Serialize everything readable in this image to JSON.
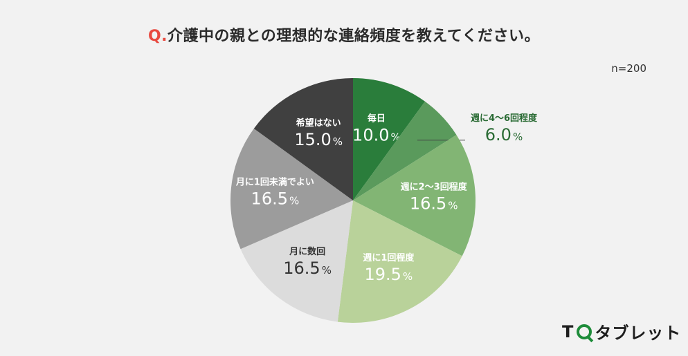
{
  "title": {
    "q": "Q.",
    "text": "介護中の親との理想的な連絡頻度を教えてください。"
  },
  "sample_size": "n=200",
  "logo": {
    "t": "T",
    "rest": "タブレット"
  },
  "chart_data": {
    "type": "pie",
    "title": "Q.介護中の親との理想的な連絡頻度を教えてください。",
    "slices": [
      {
        "label": "毎日",
        "value": 10.0,
        "display": "10.0",
        "color": "#2a7d3b"
      },
      {
        "label": "週に4〜6回程度",
        "value": 6.0,
        "display": "6.0",
        "color": "#5a9a5c"
      },
      {
        "label": "週に2〜3回程度",
        "value": 16.5,
        "display": "16.5",
        "color": "#82b574"
      },
      {
        "label": "週に1回程度",
        "value": 19.5,
        "display": "19.5",
        "color": "#b9d29a"
      },
      {
        "label": "月に数回",
        "value": 16.5,
        "display": "16.5",
        "color": "#dcdcdc"
      },
      {
        "label": "月に1回未満でよい",
        "value": 16.5,
        "display": "16.5",
        "color": "#9c9c9c"
      },
      {
        "label": "希望はない",
        "value": 15.0,
        "display": "15.0",
        "color": "#404040"
      }
    ],
    "unit": "%"
  }
}
